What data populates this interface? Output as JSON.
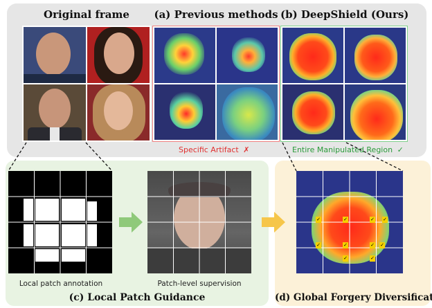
{
  "headers": {
    "original": "Original frame",
    "previous": "(a) Previous methods",
    "deepshield": "(b) DeepShield (Ours)"
  },
  "notes": {
    "specific_artifact": "Specific Artifact",
    "specific_artifact_mark": "✗",
    "entire_region": "Entire Manipulated Region",
    "entire_region_mark": "✓"
  },
  "panel_c": {
    "left_caption": "Local patch annotation",
    "right_caption": "Patch-level supervision",
    "title": "(c) Local Patch Guidance"
  },
  "panel_d": {
    "title": "(d) Global Forgery Diversification"
  },
  "colors": {
    "top_panel": "#e6e6e6",
    "panel_c": "#e8f3e2",
    "panel_d": "#fcf1d8",
    "red": "#e03030",
    "green": "#2a9a3a",
    "arrow_green": "#8fc97a",
    "arrow_yellow": "#f6c64a",
    "border_red": "#f08080",
    "border_green": "#7fcf8a"
  }
}
